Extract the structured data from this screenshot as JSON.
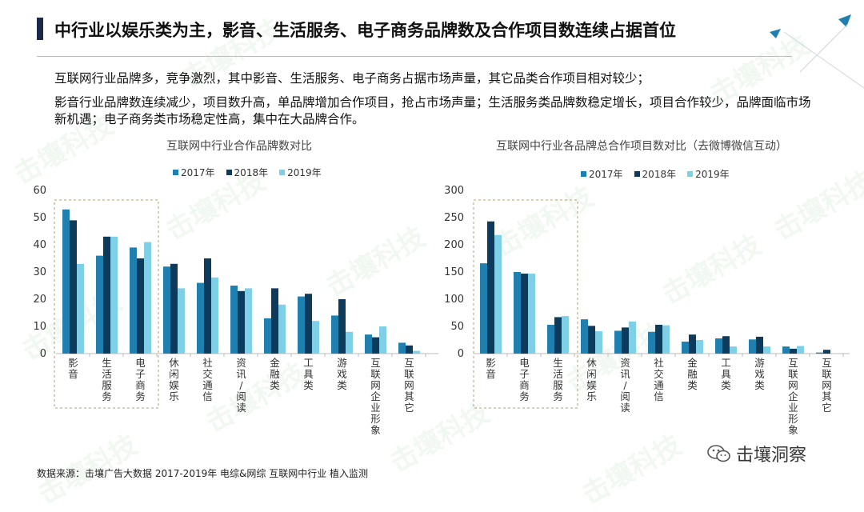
{
  "title": "中行业以娱乐类为主，影音、生活服务、电子商务品牌数及合作项目数连续占据首位",
  "paragraph1": "互联网行业品牌多，竞争激烈，其中影音、生活服务、电子商务占据市场声量，其它品类合作项目相对较少；",
  "paragraph2": "影音行业品牌数连续减少，项目数升高，单品牌增加合作项目，抢占市场声量；生活服务类品牌数稳定增长，项目合作较少，品牌面临市场新机遇；电子商务类市场稳定性高，集中在大品牌合作。",
  "source": "数据来源：击壤广告大数据 2017-2019年 电综&网综 互联网中行业 植入监测",
  "brand_name": "击壤洞察",
  "watermark": "击壤科技",
  "colors": {
    "y2017": "#1f7fae",
    "y2018": "#0e3a5c",
    "y2019": "#7fcfe6",
    "accent": "#1a2a4a"
  },
  "chart_data": [
    {
      "type": "bar",
      "title": "互联网中行业合作品牌数对比",
      "categories": [
        "影音",
        "生活服务",
        "电子商务",
        "休闲娱乐",
        "社交通信",
        "资讯/阅读",
        "金融类",
        "工具类",
        "游戏类",
        "互联网企业形象",
        "互联网其它"
      ],
      "series": [
        {
          "name": "2017年",
          "values": [
            53,
            36,
            39,
            32,
            26,
            25,
            13,
            21,
            14,
            7,
            4
          ]
        },
        {
          "name": "2018年",
          "values": [
            49,
            43,
            35,
            33,
            35,
            23,
            24,
            22,
            20,
            6,
            3
          ]
        },
        {
          "name": "2019年",
          "values": [
            33,
            43,
            41,
            24,
            28,
            24,
            18,
            12,
            8,
            10,
            1
          ]
        }
      ],
      "ylim": [
        0,
        60
      ],
      "yticks": [
        "0",
        "10",
        "20",
        "30",
        "40",
        "50",
        "60"
      ],
      "legend": "top",
      "highlight": [
        0,
        2
      ]
    },
    {
      "type": "bar",
      "title": "互联网中行业各品牌总合作项目数对比（去微博微信互动）",
      "categories": [
        "影音",
        "电子商务",
        "生活服务",
        "休闲娱乐",
        "资讯/阅读",
        "社交通信",
        "金融类",
        "工具类",
        "游戏类",
        "互联网企业形象",
        "互联网其它"
      ],
      "series": [
        {
          "name": "2017年",
          "values": [
            166,
            150,
            53,
            63,
            42,
            40,
            22,
            28,
            26,
            13,
            2
          ]
        },
        {
          "name": "2018年",
          "values": [
            243,
            147,
            67,
            51,
            48,
            53,
            35,
            32,
            31,
            9,
            7
          ]
        },
        {
          "name": "2019年",
          "values": [
            218,
            147,
            69,
            41,
            59,
            52,
            25,
            13,
            13,
            14,
            0
          ]
        }
      ],
      "ylim": [
        0,
        300
      ],
      "yticks": [
        "0",
        "50",
        "100",
        "150",
        "200",
        "250",
        "300"
      ],
      "legend": "top",
      "highlight": [
        0,
        2
      ]
    }
  ]
}
